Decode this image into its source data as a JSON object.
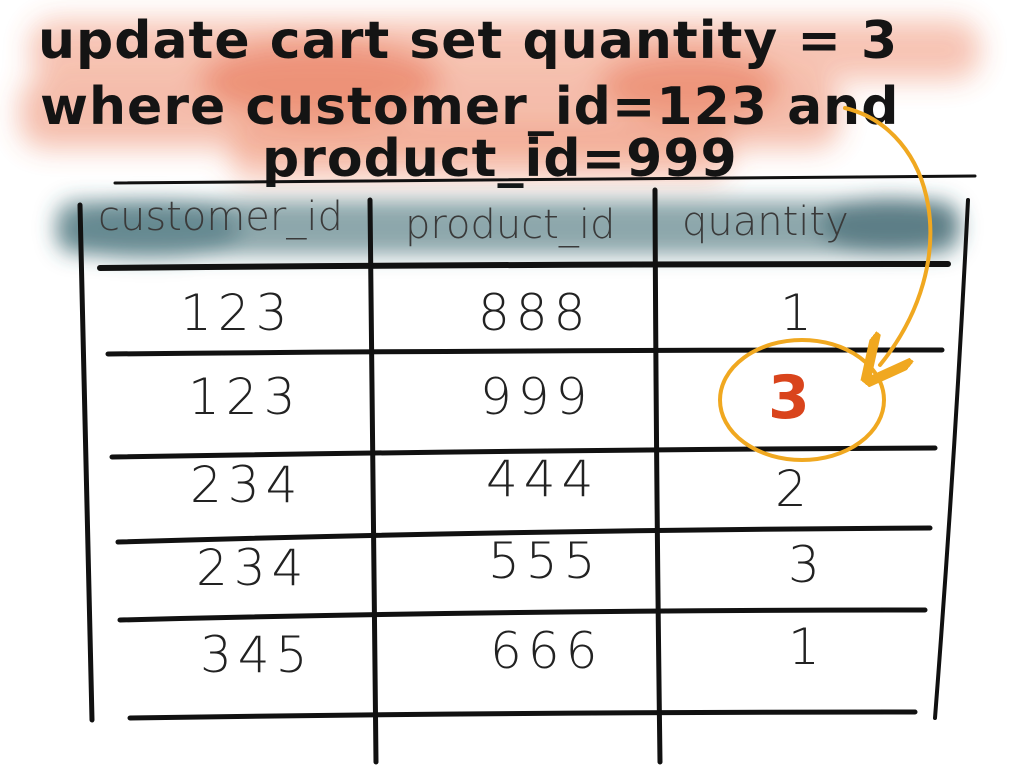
{
  "sql": {
    "line1": "update cart set quantity = 3",
    "line2": "where customer_id=123 and",
    "line3": "product_id=999"
  },
  "table": {
    "columns": [
      "customer_id",
      "product_id",
      "quantity"
    ],
    "rows": [
      [
        "123",
        "888",
        "1"
      ],
      [
        "123",
        "999",
        "3"
      ],
      [
        "234",
        "444",
        "2"
      ],
      [
        "234",
        "555",
        "3"
      ],
      [
        "345",
        "666",
        "1"
      ]
    ]
  },
  "colors": {
    "sql_highlight": "#e8663c",
    "header_highlight": "#2f5f68",
    "annotation": "#f0a820",
    "updated_value": "#d9441c",
    "ink": "#141414"
  }
}
